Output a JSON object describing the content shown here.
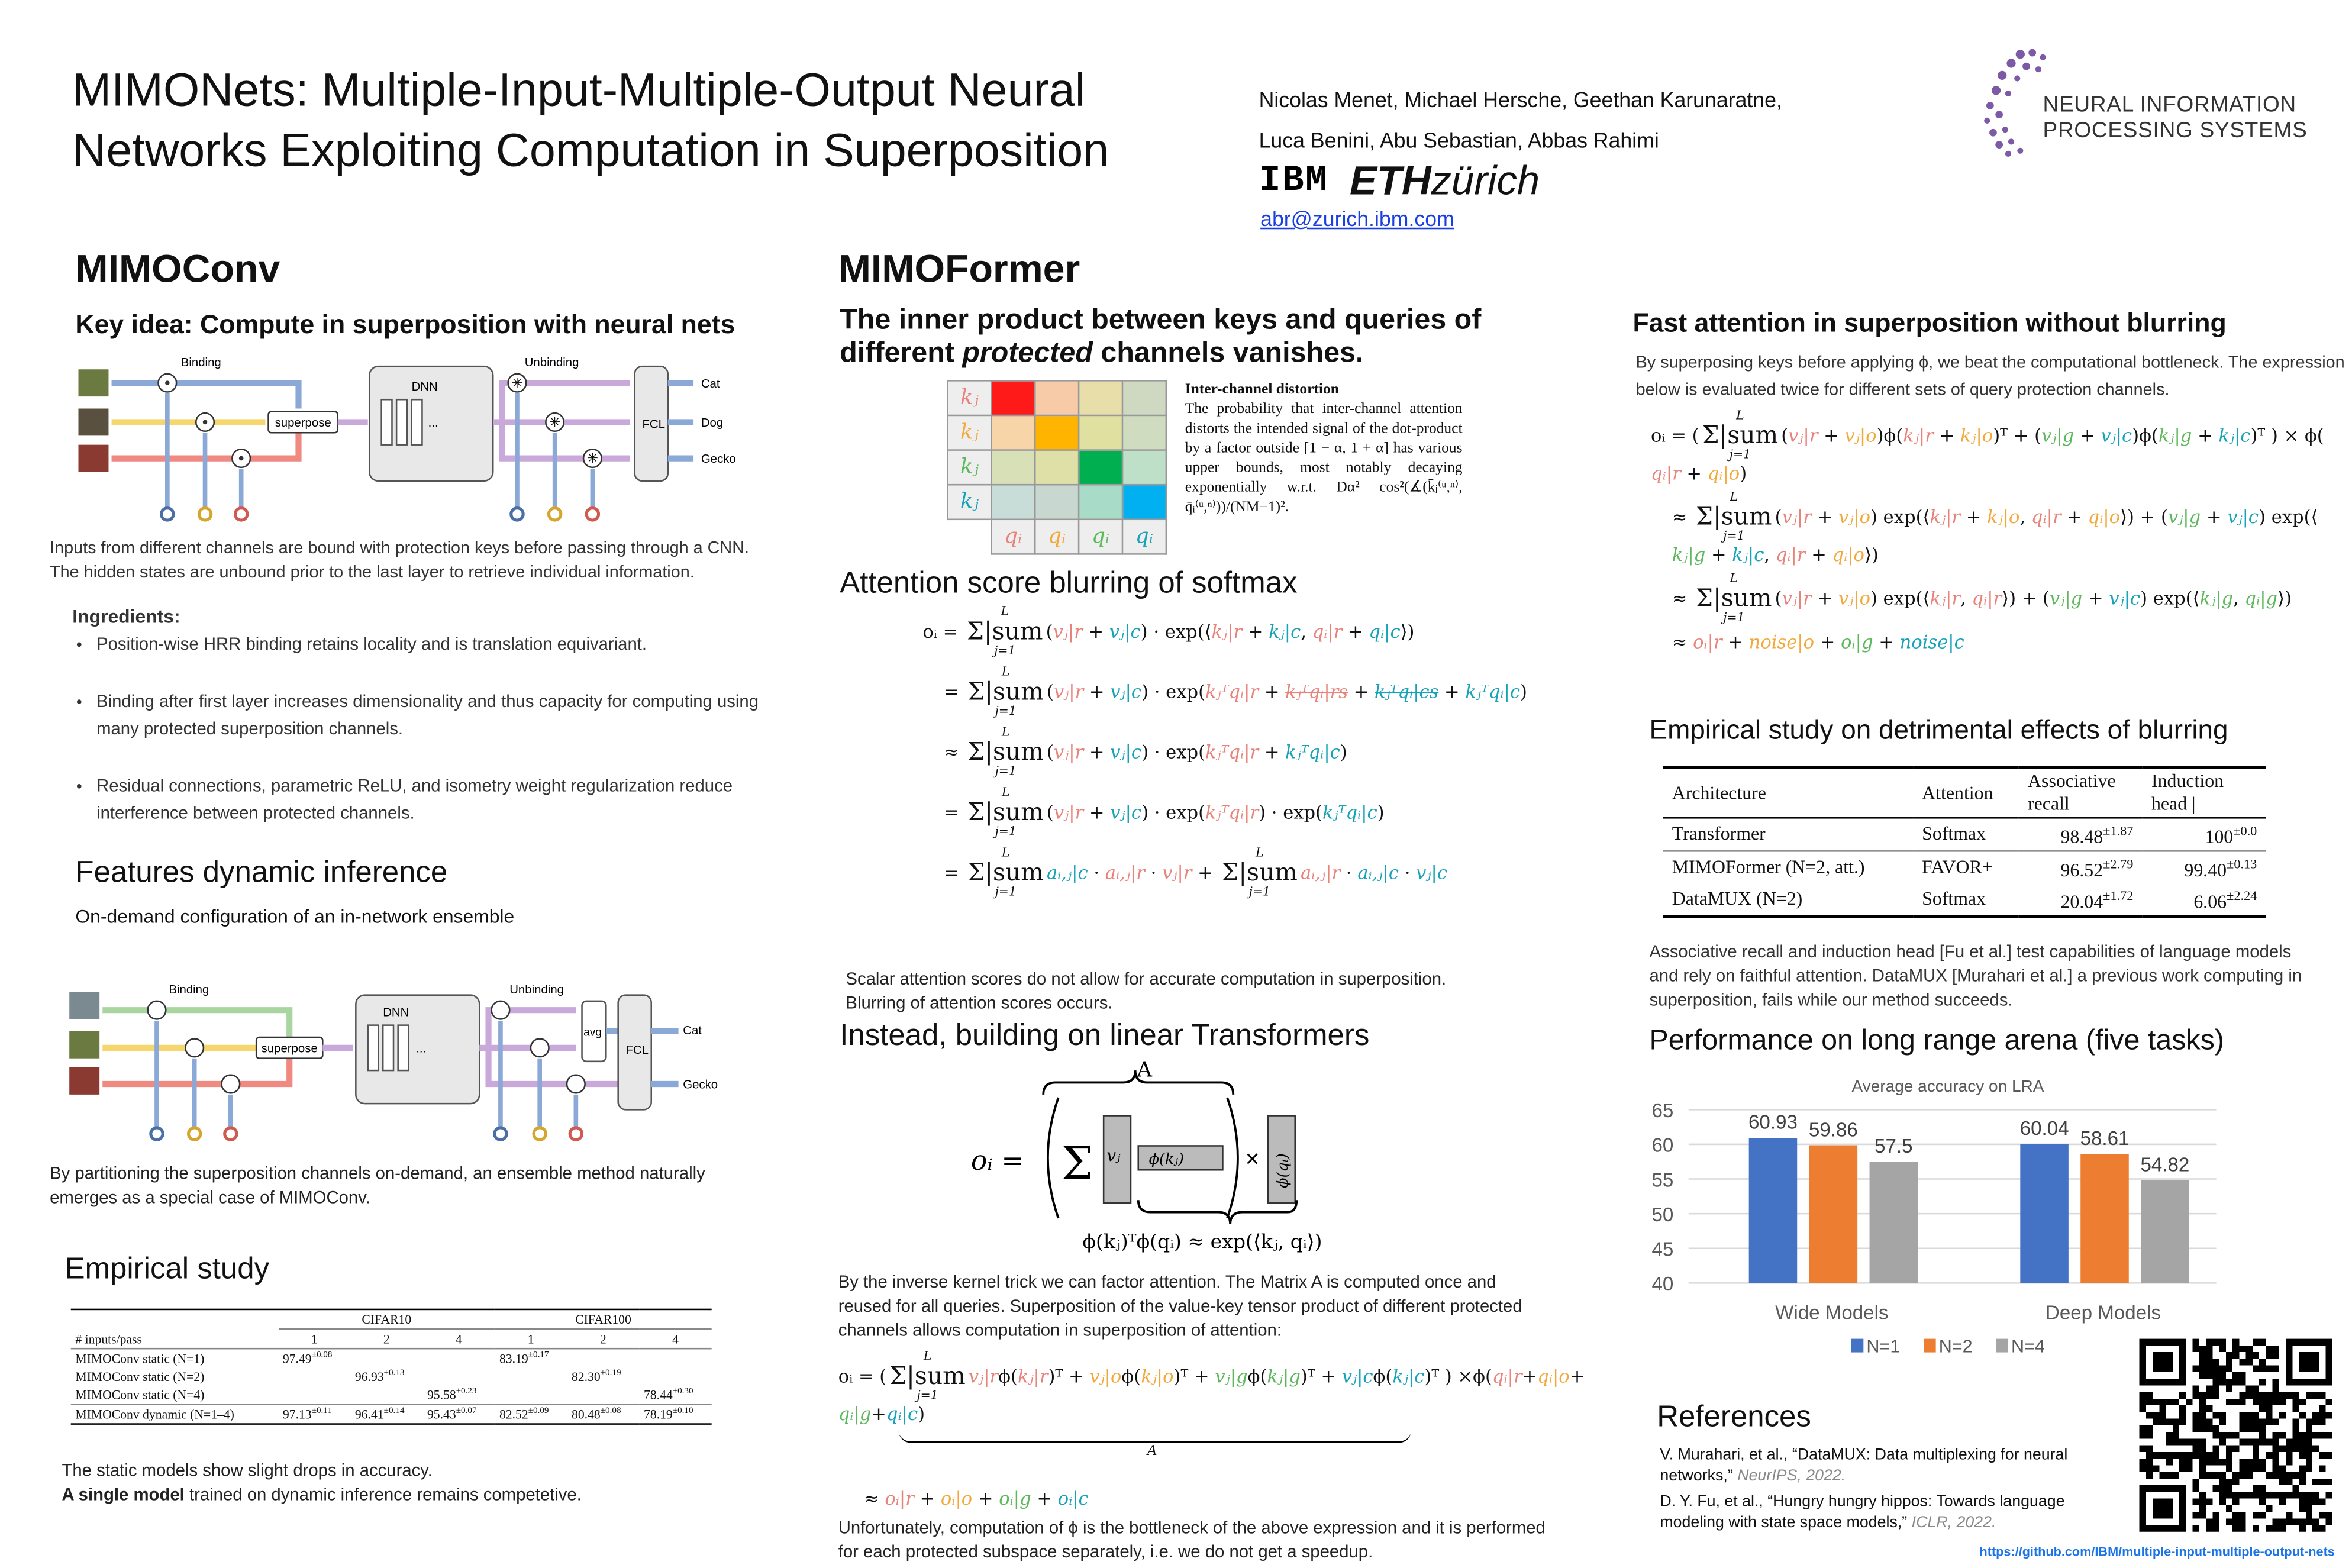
{
  "header": {
    "title_line1": "MIMONets: Multiple-Input-Multiple-Output Neural",
    "title_line2": "Networks Exploiting Computation in Superposition",
    "authors_line1": "Nicolas Menet, Michael Hersche, Geethan Karunaratne,",
    "authors_line2": "Luca Benini, Abu Sebastian, Abbas Rahimi",
    "ibm_logo": "IBM",
    "eth_logo_bold": "ETH",
    "eth_logo_light": "zürich",
    "email": "abr@zurich.ibm.com",
    "neurips_logo_line1": "NEURAL INFORMATION",
    "neurips_logo_line2": "PROCESSING SYSTEMS"
  },
  "colors": {
    "red": "#e8837b",
    "orange": "#f2a93b",
    "green": "#5db85c",
    "cyan": "#17a2b8",
    "neurips_purple": "#6b4a9a",
    "bar_n1": "#4472c4",
    "bar_n2": "#ed7d31",
    "bar_n4": "#a5a5a5"
  },
  "mimoconv": {
    "heading": "MIMOConv",
    "key_idea": "Key idea: Compute in superposition with neural nets",
    "diagram1": {
      "binding": "Binding",
      "unbinding": "Unbinding",
      "dnn": "DNN",
      "superpose": "superpose",
      "fcl": "FCL",
      "dots": "...",
      "out1": "Cat",
      "out2": "Dog",
      "out3": "Gecko"
    },
    "caption1": "Inputs from different channels are bound with protection keys before passing through a CNN.",
    "caption2": "The hidden states are unbound prior to the last layer to retrieve individual information.",
    "ingredients_title": "Ingredients:",
    "ingredients": [
      "Position-wise HRR binding retains locality and is translation equivariant.",
      "Binding after first layer increases dimensionality and thus capacity for computing using many protected superposition channels.",
      "Residual connections, parametric ReLU, and isometry weight regularization reduce interference between protected channels."
    ],
    "features_heading": "Features dynamic inference",
    "features_sub": "On-demand configuration of an in-network ensemble",
    "diagram2": {
      "binding": "Binding",
      "unbinding": "Unbinding",
      "dnn": "DNN",
      "superpose": "superpose",
      "fcl": "FCL",
      "avg": "avg",
      "dots": "...",
      "out1": "Cat",
      "out2": "Gecko"
    },
    "features_caption": "By partitioning the superposition channels on-demand, an ensemble method naturally emerges as a special case of MIMOConv.",
    "empirical_heading": "Empirical study",
    "table": {
      "groups": [
        "CIFAR10",
        "CIFAR100"
      ],
      "row_header": "# inputs/pass",
      "cols": [
        "1",
        "2",
        "4",
        "1",
        "2",
        "4"
      ],
      "rows": [
        {
          "name": "MIMOConv static (N=1)",
          "cells": [
            {
              "v": "97.49",
              "pm": "±0.08"
            },
            null,
            null,
            {
              "v": "83.19",
              "pm": "±0.17"
            },
            null,
            null
          ]
        },
        {
          "name": "MIMOConv static (N=2)",
          "cells": [
            null,
            {
              "v": "96.93",
              "pm": "±0.13"
            },
            null,
            null,
            {
              "v": "82.30",
              "pm": "±0.19"
            },
            null
          ]
        },
        {
          "name": "MIMOConv static (N=4)",
          "cells": [
            null,
            null,
            {
              "v": "95.58",
              "pm": "±0.23"
            },
            null,
            null,
            {
              "v": "78.44",
              "pm": "±0.30"
            }
          ]
        },
        {
          "name": "MIMOConv dynamic (N=1–4)",
          "cells": [
            {
              "v": "97.13",
              "pm": "±0.11"
            },
            {
              "v": "96.41",
              "pm": "±0.14"
            },
            {
              "v": "95.43",
              "pm": "±0.07"
            },
            {
              "v": "82.52",
              "pm": "±0.09"
            },
            {
              "v": "80.48",
              "pm": "±0.08"
            },
            {
              "v": "78.19",
              "pm": "±0.10"
            }
          ]
        }
      ]
    },
    "empirical_caption1": "The static models show slight drops in accuracy.",
    "empirical_caption2_bold": "A single model",
    "empirical_caption2_rest": " trained on dynamic inference remains competetive."
  },
  "mimoformer": {
    "heading": "MIMOFormer",
    "sub_line1": "The inner product between keys and queries of",
    "sub_line2_a": "different ",
    "sub_line2_em": "protected",
    "sub_line2_b": " channels vanishes.",
    "grid_row_labels": [
      "kⱼ",
      "kⱼ",
      "kⱼ",
      "kⱼ"
    ],
    "grid_col_labels": [
      "qᵢ",
      "qᵢ",
      "qᵢ",
      "qᵢ"
    ],
    "distortion_title": "Inter-channel distortion",
    "distortion_text": "The probability that inter-channel attention distorts the intended signal of the dot-product by a factor outside [1 − α, 1 + α] has various upper bounds, most notably decaying exponentially w.r.t. Dα² cos²(∡(k̄ⱼ⁽ᵘ,ⁿ⁾, q̄ᵢ⁽ᵘ,ⁿ⁾))/(NM−1)².",
    "blur_heading": "Attention score blurring of softmax",
    "sum_limits": {
      "upper": "L",
      "lower": "j=1"
    },
    "blur_eqs": [
      [
        "oᵢ = ",
        "Σ|sum",
        "(",
        "vⱼ|r",
        " + ",
        "vⱼ|c",
        ") · exp(⟨",
        "kⱼ|r",
        " + ",
        "kⱼ|c",
        ", ",
        "qᵢ|r",
        " + ",
        "qᵢ|c",
        "⟩)"
      ],
      [
        "= ",
        "Σ|sum",
        "(",
        "vⱼ|r",
        " + ",
        "vⱼ|c",
        ") · exp(",
        "kⱼᵀqᵢ|r",
        " + ",
        "kⱼᵀqᵢ|rs",
        " + ",
        "kⱼᵀqᵢ|cs",
        " + ",
        "kⱼᵀqᵢ|c",
        ")"
      ],
      [
        "≈ ",
        "Σ|sum",
        "(",
        "vⱼ|r",
        " + ",
        "vⱼ|c",
        ") · exp(",
        "kⱼᵀqᵢ|r",
        " + ",
        "kⱼᵀqᵢ|c",
        ")"
      ],
      [
        "= ",
        "Σ|sum",
        "(",
        "vⱼ|r",
        " + ",
        "vⱼ|c",
        ") · exp(",
        "kⱼᵀqᵢ|r",
        ") · exp(",
        "kⱼᵀqᵢ|c",
        ")"
      ],
      [
        "= ",
        "Σ|sum",
        "aᵢ,ⱼ|c",
        " · ",
        "aᵢ,ⱼ|r",
        " · ",
        "vⱼ|r",
        " + ",
        "Σ|sum",
        "aᵢ,ⱼ|r",
        " · ",
        "aᵢ,ⱼ|c",
        " · ",
        "vⱼ|c"
      ]
    ],
    "blur_caption1": "Scalar attention scores do not allow for accurate computation in superposition.",
    "blur_caption2": "Blurring of attention scores occurs.",
    "linear_heading": "Instead, building on linear Transformers",
    "linear_diagram": {
      "A": "A",
      "oi": "oᵢ =",
      "vj": "vⱼ",
      "phik": "ϕ(kⱼ)",
      "times": "×",
      "phiq": "ϕ(qᵢ)",
      "kernel": "ϕ(kⱼ)ᵀϕ(qᵢ) ≈ exp(⟨kⱼ, qᵢ⟩)"
    },
    "linear_text": "By the inverse kernel trick we can factor attention. The Matrix A is computed once and reused for all queries. Superposition of the value-key tensor product of different protected channels allows computation in superposition of attention:",
    "super_eq": [
      "oᵢ = (",
      "Σ|sum",
      "vⱼ|r",
      "ϕ(",
      "kⱼ|r",
      ")ᵀ + ",
      "vⱼ|o",
      "ϕ(",
      "kⱼ|o",
      ")ᵀ + ",
      "vⱼ|g",
      "ϕ(",
      "kⱼ|g",
      ")ᵀ + ",
      "vⱼ|c",
      "ϕ(",
      "kⱼ|c",
      ")ᵀ ) ×ϕ(",
      "qᵢ|r",
      "+",
      "qᵢ|o",
      "+",
      "qᵢ|g",
      "+",
      "qᵢ|c",
      ")"
    ],
    "super_eq_brace": "A",
    "super_eq2": [
      "≈ ",
      "oᵢ|r",
      " + ",
      "oᵢ|o",
      " + ",
      "oᵢ|g",
      " + ",
      "oᵢ|c"
    ],
    "bottleneck_text": "Unfortunately, computation of ϕ is the bottleneck of the above expression and it is performed for each protected subspace separately, i.e. we do not get a speedup."
  },
  "fast": {
    "heading": "Fast attention in superposition without blurring",
    "text": "By superposing keys before applying ϕ, we beat the computational bottleneck. The expression below is evaluated twice for different sets of query protection channels.",
    "eqs": [
      [
        "oᵢ = (",
        "Σ|sum",
        "(",
        "vⱼ|r",
        " + ",
        "vⱼ|o",
        ")ϕ(",
        "kⱼ|r",
        " + ",
        "kⱼ|o",
        ")ᵀ + (",
        "vⱼ|g",
        " + ",
        "vⱼ|c",
        ")ϕ(",
        "kⱼ|g",
        " + ",
        "kⱼ|c",
        ")ᵀ ) × ϕ(",
        "qᵢ|r",
        " + ",
        "qᵢ|o",
        ")"
      ],
      [
        "≈ ",
        "Σ|sum",
        "(",
        "vⱼ|r",
        " + ",
        "vⱼ|o",
        ") exp(⟨",
        "kⱼ|r",
        " + ",
        "kⱼ|o",
        ", ",
        "qᵢ|r",
        " + ",
        "qᵢ|o",
        "⟩) + (",
        "vⱼ|g",
        " + ",
        "vⱼ|c",
        ") exp(⟨",
        "kⱼ|g",
        " + ",
        "kⱼ|c",
        ", ",
        "qᵢ|r",
        " + ",
        "qᵢ|o",
        "⟩)"
      ],
      [
        "≈ ",
        "Σ|sum",
        "(",
        "vⱼ|r",
        " + ",
        "vⱼ|o",
        ") exp(⟨",
        "kⱼ|r",
        ", ",
        "qᵢ|r",
        "⟩) + (",
        "vⱼ|g",
        " + ",
        "vⱼ|c",
        ") exp(⟨",
        "kⱼ|g",
        ", ",
        "qᵢ|g",
        "⟩)"
      ],
      [
        "≈ ",
        "oᵢ|r",
        " + ",
        "noise|o",
        " + ",
        "oᵢ|g",
        " + ",
        "noise|c"
      ]
    ],
    "blur_heading": "Empirical study on detrimental effects of blurring",
    "table": {
      "headers": [
        "Architecture",
        "Attention",
        "Associative recall",
        "Induction head |"
      ],
      "rows": [
        {
          "arch": "Transformer",
          "att": "Softmax",
          "ar": {
            "v": "98.48",
            "pm": "±1.87"
          },
          "ih": {
            "v": "100",
            "pm": "±0.0"
          }
        },
        {
          "arch": "MIMOFormer (N=2, att.)",
          "att": "FAVOR+",
          "ar": {
            "v": "96.52",
            "pm": "±2.79"
          },
          "ih": {
            "v": "99.40",
            "pm": "±0.13"
          }
        },
        {
          "arch": "DataMUX (N=2)",
          "att": "Softmax",
          "ar": {
            "v": "20.04",
            "pm": "±1.72"
          },
          "ih": {
            "v": "6.06",
            "pm": "±2.24"
          }
        }
      ]
    },
    "table_caption": "Associative recall and induction head [Fu et al.] test capabilities of language models and rely on faithful attention. DataMUX [Murahari et al.] a previous work computing in superposition, fails while our method succeeds.",
    "lra_heading": "Performance on long range arena (five tasks)"
  },
  "chart_data": {
    "type": "bar",
    "title": "Average accuracy on LRA",
    "categories": [
      "Wide Models",
      "Deep Models"
    ],
    "series": [
      {
        "name": "N=1",
        "values": [
          60.93,
          60.04
        ]
      },
      {
        "name": "N=2",
        "values": [
          59.86,
          58.61
        ]
      },
      {
        "name": "N=4",
        "values": [
          57.5,
          54.82
        ]
      }
    ],
    "ylim": [
      40,
      65
    ],
    "yticks": [
      "40",
      "45",
      "50",
      "55",
      "60",
      "65"
    ],
    "grid": true,
    "legend": "bottom",
    "data_labels": [
      "60.93",
      "59.86",
      "57.5",
      "60.04",
      "58.61",
      "54.82"
    ]
  },
  "references": {
    "heading": "References",
    "items": [
      {
        "text": "V. Murahari, et al., “DataMUX: Data multiplexing for neural networks,” ",
        "venue": "NeurIPS, 2022."
      },
      {
        "text": "D. Y. Fu, et al., “Hungry hungry hippos: Towards language modeling with state space models,” ",
        "venue": "ICLR, 2022."
      }
    ],
    "url": "https://github.com/IBM/multiple-input-multiple-output-nets"
  }
}
